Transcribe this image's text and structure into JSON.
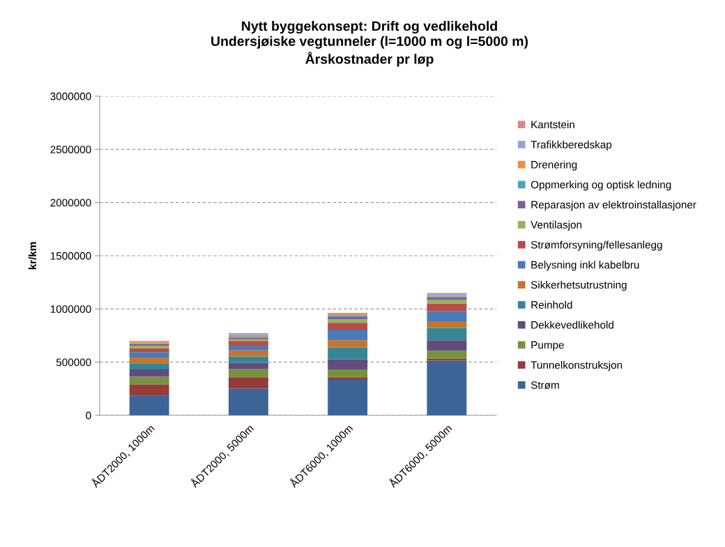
{
  "chart_data": {
    "type": "bar",
    "title": "Nytt byggekonsept: Drift og vedlikehold\nUndersjøiske vegtunneler (l=1000 m og l=5000 m)\nÅrskostnader pr løp",
    "ylabel": "kr/km",
    "categories": [
      "ÅDT2000, 1000m",
      "ÅDT2000, 5000m",
      "ÅDT6000, 1000m",
      "ÅDT6000, 5000m"
    ],
    "stacked": true,
    "series": [
      {
        "name": "Strøm",
        "color": "#3d6496",
        "values": [
          185000,
          253000,
          334000,
          515000
        ]
      },
      {
        "name": "Tunnelkonstruksjon",
        "color": "#953b3a",
        "values": [
          107000,
          100000,
          20000,
          17000
        ]
      },
      {
        "name": "Pumpe",
        "color": "#77923f",
        "values": [
          72000,
          81000,
          74000,
          76000
        ]
      },
      {
        "name": "Dekkevedlikehold",
        "color": "#624c7c",
        "values": [
          68000,
          61000,
          98000,
          98000
        ]
      },
      {
        "name": "Reinhold",
        "color": "#348696",
        "values": [
          57000,
          59000,
          111000,
          116000
        ]
      },
      {
        "name": "Sikkerhetsutrustning",
        "color": "#c4752f",
        "values": [
          55000,
          57000,
          68000,
          63000
        ]
      },
      {
        "name": "Belysning inkl kabelbru",
        "color": "#4a7ab8",
        "values": [
          50000,
          44000,
          100000,
          96000
        ]
      },
      {
        "name": "Strømforsyning/fellesanlegg",
        "color": "#ba4a48",
        "values": [
          37000,
          44000,
          65000,
          68000
        ]
      },
      {
        "name": "Ventilasjon",
        "color": "#94b556",
        "values": [
          24000,
          17000,
          33000,
          37000
        ]
      },
      {
        "name": "Reparasjon av elektroinstallasjoner",
        "color": "#7b5f9d",
        "values": [
          15000,
          15000,
          26000,
          22000
        ]
      },
      {
        "name": "Oppmerking og optisk ledning",
        "color": "#48a6bf",
        "values": [
          8000,
          10000,
          9000,
          11000
        ]
      },
      {
        "name": "Drenering",
        "color": "#f08e3e",
        "values": [
          9000,
          12000,
          11000,
          11000
        ]
      },
      {
        "name": "Trafikkberedskap",
        "color": "#8ca8d2",
        "values": [
          6000,
          10000,
          7000,
          9000
        ]
      },
      {
        "name": "Kantstein",
        "color": "#d58a8a",
        "values": [
          6000,
          10000,
          7000,
          10000
        ]
      }
    ],
    "ylim": [
      0,
      3000000
    ],
    "yticks": [
      0,
      500000,
      1000000,
      1500000,
      2000000,
      2500000,
      3000000
    ],
    "grid": "y",
    "legend": "right"
  }
}
